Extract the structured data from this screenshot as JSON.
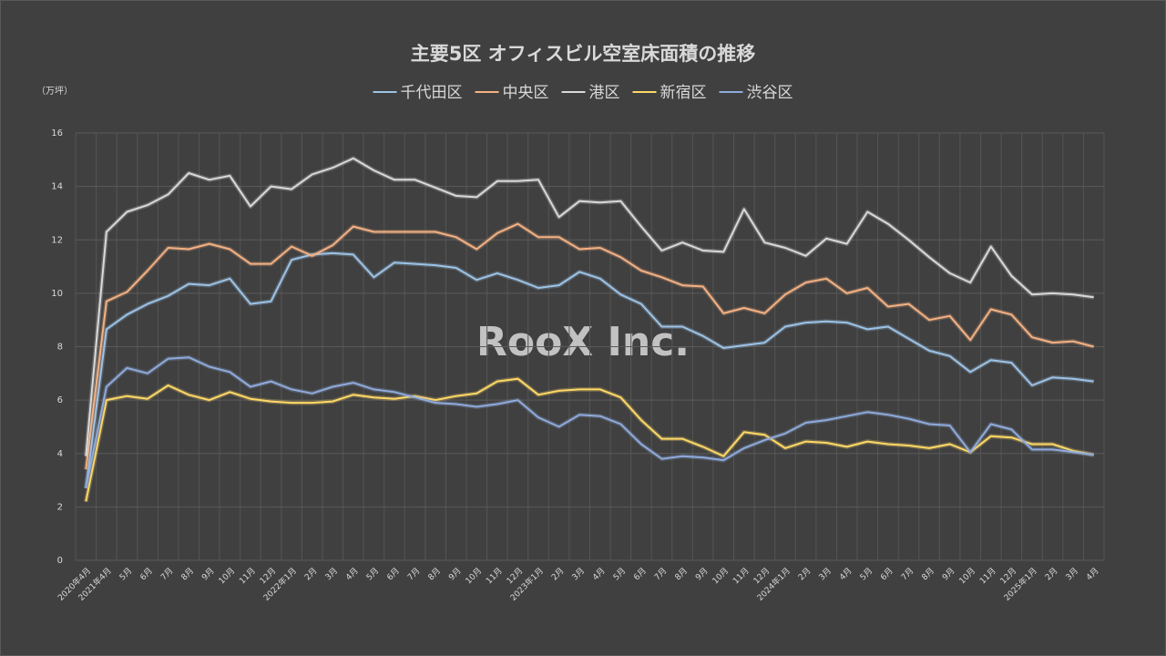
{
  "chart_data": {
    "type": "line",
    "title": "主要5区 オフィスビル空室床面積の推移",
    "y_unit": "（万坪）",
    "watermark": "RooX Inc.",
    "categories": [
      "2020年4月",
      "2021年4月",
      "5月",
      "6月",
      "7月",
      "8月",
      "9月",
      "10月",
      "11月",
      "12月",
      "2022年1月",
      "2月",
      "3月",
      "4月",
      "5月",
      "6月",
      "7月",
      "8月",
      "9月",
      "10月",
      "11月",
      "12月",
      "2023年1月",
      "2月",
      "3月",
      "4月",
      "5月",
      "6月",
      "7月",
      "8月",
      "9月",
      "10月",
      "11月",
      "12月",
      "2024年1月",
      "2月",
      "3月",
      "4月",
      "5月",
      "6月",
      "7月",
      "8月",
      "9月",
      "10月",
      "11月",
      "12月",
      "2025年1月",
      "2月",
      "3月",
      "4月"
    ],
    "series": [
      {
        "name": "千代田区",
        "color": "#9dc3e6",
        "values": [
          2.7,
          8.65,
          9.2,
          9.6,
          9.9,
          10.35,
          10.3,
          10.55,
          9.6,
          9.7,
          11.25,
          11.45,
          11.5,
          11.45,
          10.6,
          11.15,
          11.1,
          11.05,
          10.95,
          10.5,
          10.75,
          10.5,
          10.2,
          10.3,
          10.8,
          10.55,
          9.95,
          9.6,
          8.75,
          8.75,
          8.4,
          7.95,
          8.05,
          8.15,
          8.75,
          8.9,
          8.95,
          8.9,
          8.65,
          8.75,
          8.3,
          7.85,
          7.65,
          7.05,
          7.5,
          7.4,
          6.55,
          6.85,
          6.8,
          6.7
        ]
      },
      {
        "name": "中央区",
        "color": "#f4b183",
        "values": [
          3.4,
          9.7,
          10.05,
          10.85,
          11.7,
          11.65,
          11.85,
          11.65,
          11.1,
          11.1,
          11.75,
          11.4,
          11.8,
          12.5,
          12.3,
          12.3,
          12.3,
          12.3,
          12.1,
          11.65,
          12.25,
          12.6,
          12.1,
          12.1,
          11.65,
          11.7,
          11.35,
          10.85,
          10.6,
          10.3,
          10.25,
          9.25,
          9.45,
          9.25,
          9.95,
          10.4,
          10.55,
          10.0,
          10.2,
          9.5,
          9.6,
          9.0,
          9.15,
          8.25,
          9.4,
          9.2,
          8.35,
          8.15,
          8.2,
          8.0
        ]
      },
      {
        "name": "港区",
        "color": "#d9d9d9",
        "values": [
          3.9,
          12.3,
          13.05,
          13.3,
          13.7,
          14.5,
          14.25,
          14.4,
          13.25,
          14.0,
          13.9,
          14.45,
          14.7,
          15.05,
          14.6,
          14.25,
          14.25,
          13.95,
          13.65,
          13.6,
          14.2,
          14.2,
          14.25,
          12.85,
          13.45,
          13.4,
          13.45,
          12.5,
          11.6,
          11.9,
          11.6,
          11.55,
          13.15,
          11.9,
          11.7,
          11.4,
          12.05,
          11.85,
          13.05,
          12.6,
          12.0,
          11.35,
          10.75,
          10.4,
          11.75,
          10.65,
          9.95,
          10.0,
          9.95,
          9.85
        ]
      },
      {
        "name": "新宿区",
        "color": "#ffd966",
        "values": [
          2.2,
          6.0,
          6.15,
          6.05,
          6.55,
          6.2,
          6.0,
          6.3,
          6.05,
          5.95,
          5.9,
          5.9,
          5.95,
          6.2,
          6.1,
          6.05,
          6.15,
          6.0,
          6.15,
          6.25,
          6.7,
          6.8,
          6.2,
          6.35,
          6.4,
          6.4,
          6.1,
          5.25,
          4.55,
          4.55,
          4.25,
          3.9,
          4.8,
          4.7,
          4.2,
          4.45,
          4.4,
          4.25,
          4.45,
          4.35,
          4.3,
          4.2,
          4.35,
          4.05,
          4.65,
          4.6,
          4.35,
          4.35,
          4.1,
          3.95
        ]
      },
      {
        "name": "渋谷区",
        "color": "#8faadc",
        "values": [
          2.7,
          6.5,
          7.2,
          7.0,
          7.55,
          7.6,
          7.25,
          7.05,
          6.5,
          6.7,
          6.4,
          6.25,
          6.5,
          6.65,
          6.4,
          6.3,
          6.1,
          5.9,
          5.85,
          5.75,
          5.85,
          6.0,
          5.35,
          5.0,
          5.45,
          5.4,
          5.1,
          4.35,
          3.8,
          3.9,
          3.85,
          3.75,
          4.2,
          4.5,
          4.75,
          5.15,
          5.25,
          5.4,
          5.55,
          5.45,
          5.3,
          5.1,
          5.05,
          4.05,
          5.1,
          4.9,
          4.15,
          4.15,
          4.05,
          3.95
        ]
      }
    ],
    "ylim": [
      0,
      16
    ],
    "yticks": [
      0,
      2,
      4,
      6,
      8,
      10,
      12,
      14,
      16
    ],
    "grid": true
  }
}
